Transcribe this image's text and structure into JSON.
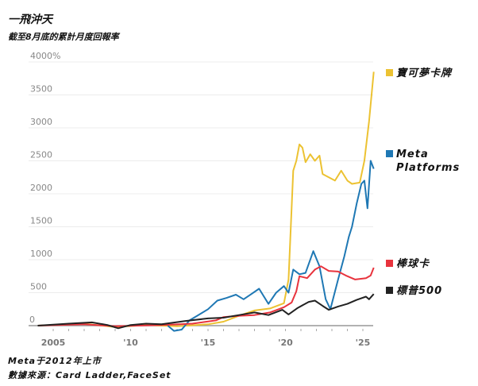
{
  "title": "一飛沖天",
  "subtitle": "截至8月底的累計月度回報率",
  "note": "Meta于2012年上市",
  "source": "數據來源：Card Ladder,FaceSet",
  "chart_data": {
    "type": "line",
    "title": "一飛沖天",
    "subtitle": "截至8月底的累計月度回報率",
    "ylim": [
      0,
      4000
    ],
    "xlim": [
      2004,
      2025.8
    ],
    "y_ticks": [
      {
        "value": 0,
        "label": "0"
      },
      {
        "value": 500,
        "label": "500"
      },
      {
        "value": 1000,
        "label": "1000"
      },
      {
        "value": 1500,
        "label": "1500"
      },
      {
        "value": 2000,
        "label": "2000"
      },
      {
        "value": 2500,
        "label": "2500"
      },
      {
        "value": 3000,
        "label": "3000"
      },
      {
        "value": 3500,
        "label": "3500"
      },
      {
        "value": 4000,
        "label": "4000%"
      }
    ],
    "x_ticks": [
      {
        "value": 2005,
        "label": "2005"
      },
      {
        "value": 2010,
        "label": "'10"
      },
      {
        "value": 2015,
        "label": "'15"
      },
      {
        "value": 2020,
        "label": "'20"
      },
      {
        "value": 2025,
        "label": "'25"
      }
    ],
    "grid": true,
    "legend": "right",
    "series": [
      {
        "name": "寶可夢卡牌",
        "color": "#ecc232",
        "points": [
          [
            2004,
            0
          ],
          [
            2007,
            30
          ],
          [
            2009,
            -20
          ],
          [
            2011,
            10
          ],
          [
            2013,
            -10
          ],
          [
            2015,
            20
          ],
          [
            2016,
            60
          ],
          [
            2017,
            150
          ],
          [
            2018,
            230
          ],
          [
            2019,
            260
          ],
          [
            2019.9,
            340
          ],
          [
            2020.2,
            700
          ],
          [
            2020.5,
            2350
          ],
          [
            2020.7,
            2500
          ],
          [
            2020.9,
            2750
          ],
          [
            2021.1,
            2700
          ],
          [
            2021.3,
            2480
          ],
          [
            2021.6,
            2600
          ],
          [
            2021.9,
            2500
          ],
          [
            2022.2,
            2580
          ],
          [
            2022.4,
            2300
          ],
          [
            2022.8,
            2250
          ],
          [
            2023.2,
            2200
          ],
          [
            2023.6,
            2350
          ],
          [
            2024,
            2200
          ],
          [
            2024.3,
            2150
          ],
          [
            2024.8,
            2170
          ],
          [
            2025.1,
            2500
          ],
          [
            2025.4,
            3100
          ],
          [
            2025.7,
            3850
          ]
        ]
      },
      {
        "name": "Meta Platforms",
        "color": "#1f78b4",
        "points": [
          [
            2012.4,
            0
          ],
          [
            2012.8,
            -80
          ],
          [
            2013.3,
            -60
          ],
          [
            2013.8,
            80
          ],
          [
            2014.3,
            150
          ],
          [
            2015,
            250
          ],
          [
            2015.6,
            380
          ],
          [
            2016.2,
            420
          ],
          [
            2016.8,
            470
          ],
          [
            2017.3,
            400
          ],
          [
            2017.8,
            480
          ],
          [
            2018.3,
            560
          ],
          [
            2018.9,
            330
          ],
          [
            2019.4,
            500
          ],
          [
            2019.9,
            600
          ],
          [
            2020.2,
            500
          ],
          [
            2020.5,
            850
          ],
          [
            2020.9,
            780
          ],
          [
            2021.3,
            800
          ],
          [
            2021.8,
            1130
          ],
          [
            2022.2,
            900
          ],
          [
            2022.6,
            400
          ],
          [
            2022.9,
            250
          ],
          [
            2023.4,
            700
          ],
          [
            2023.8,
            1050
          ],
          [
            2024.1,
            1350
          ],
          [
            2024.3,
            1500
          ],
          [
            2024.6,
            1850
          ],
          [
            2024.9,
            2150
          ],
          [
            2025.1,
            2200
          ],
          [
            2025.3,
            1780
          ],
          [
            2025.5,
            2500
          ],
          [
            2025.7,
            2380
          ]
        ]
      },
      {
        "name": "棒球卡",
        "color": "#e8333d",
        "points": [
          [
            2004,
            0
          ],
          [
            2007,
            20
          ],
          [
            2009,
            -10
          ],
          [
            2012,
            10
          ],
          [
            2014,
            30
          ],
          [
            2015.5,
            80
          ],
          [
            2016,
            130
          ],
          [
            2017,
            150
          ],
          [
            2018,
            160
          ],
          [
            2019,
            200
          ],
          [
            2019.9,
            280
          ],
          [
            2020.4,
            350
          ],
          [
            2020.7,
            520
          ],
          [
            2020.9,
            750
          ],
          [
            2021.4,
            720
          ],
          [
            2021.9,
            850
          ],
          [
            2022.3,
            900
          ],
          [
            2022.8,
            830
          ],
          [
            2023.4,
            820
          ],
          [
            2023.9,
            760
          ],
          [
            2024.5,
            700
          ],
          [
            2025.2,
            720
          ],
          [
            2025.5,
            760
          ],
          [
            2025.7,
            880
          ]
        ]
      },
      {
        "name": "標普500",
        "color": "#222222",
        "points": [
          [
            2004,
            0
          ],
          [
            2006,
            30
          ],
          [
            2007.5,
            50
          ],
          [
            2008.5,
            10
          ],
          [
            2009.2,
            -40
          ],
          [
            2010,
            10
          ],
          [
            2011,
            30
          ],
          [
            2012,
            20
          ],
          [
            2013.5,
            70
          ],
          [
            2015,
            110
          ],
          [
            2016,
            120
          ],
          [
            2017,
            160
          ],
          [
            2018,
            200
          ],
          [
            2018.9,
            160
          ],
          [
            2019.8,
            240
          ],
          [
            2020.2,
            170
          ],
          [
            2020.8,
            270
          ],
          [
            2021.5,
            360
          ],
          [
            2021.9,
            380
          ],
          [
            2022.4,
            300
          ],
          [
            2022.8,
            240
          ],
          [
            2023.4,
            290
          ],
          [
            2024,
            330
          ],
          [
            2024.6,
            390
          ],
          [
            2025.2,
            440
          ],
          [
            2025.4,
            400
          ],
          [
            2025.7,
            480
          ]
        ]
      }
    ]
  }
}
